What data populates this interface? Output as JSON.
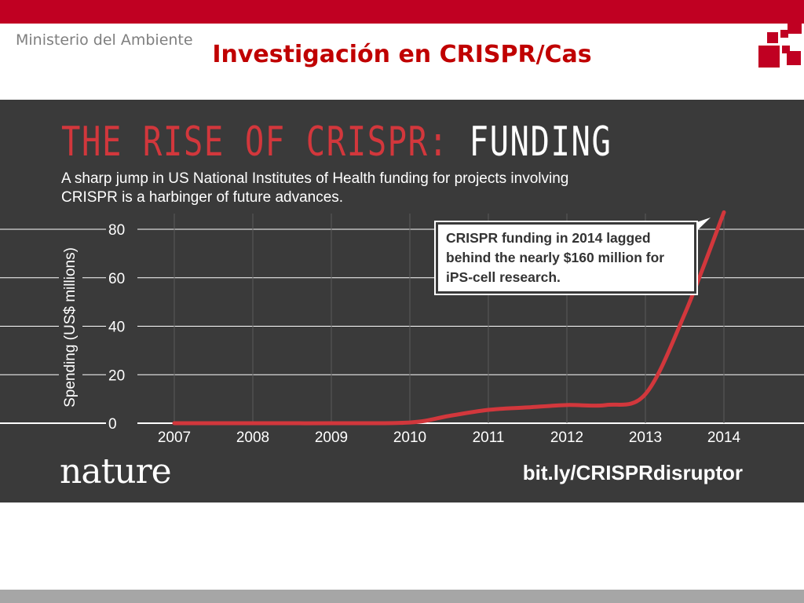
{
  "slide": {
    "ministry": "Ministerio del Ambiente",
    "title": "Investigación en CRISPR/Cas"
  },
  "colors": {
    "accent": "#c00022",
    "chart_bg": "#3a3a3a",
    "series": "#d2373c",
    "grid": "#ffffff",
    "bottom_bar": "#a6a6a6"
  },
  "infographic": {
    "title_part1": "THE RISE OF CRISPR:",
    "title_part2": "FUNDING",
    "subtitle": "A sharp jump in US National Institutes of Health funding for projects involving CRISPR is a harbinger of future advances.",
    "annotation": "CRISPR funding in 2014 lagged behind the nearly $160 million for iPS-cell research.",
    "publisher": "nature",
    "link": "bit.ly/CRISPRdisruptor"
  },
  "chart_data": {
    "type": "line",
    "title": "THE RISE OF CRISPR: FUNDING",
    "xlabel": "",
    "ylabel": "Spending (US$ millions)",
    "x_ticks": [
      "2007",
      "2008",
      "2009",
      "2010",
      "2011",
      "2012",
      "2013",
      "2014"
    ],
    "y_ticks": [
      0,
      20,
      40,
      60,
      80
    ],
    "xlim": [
      2007,
      2014
    ],
    "ylim": [
      0,
      80
    ],
    "grid": true,
    "series": [
      {
        "x": [
          2007,
          2008,
          2009,
          2010,
          2010.5,
          2011,
          2011.5,
          2012,
          2012.5,
          2013,
          2013.5,
          2014
        ],
        "values": [
          0,
          0,
          0,
          0.3,
          3,
          5.5,
          6.5,
          7.5,
          7.5,
          12,
          45,
          87
        ]
      }
    ]
  }
}
